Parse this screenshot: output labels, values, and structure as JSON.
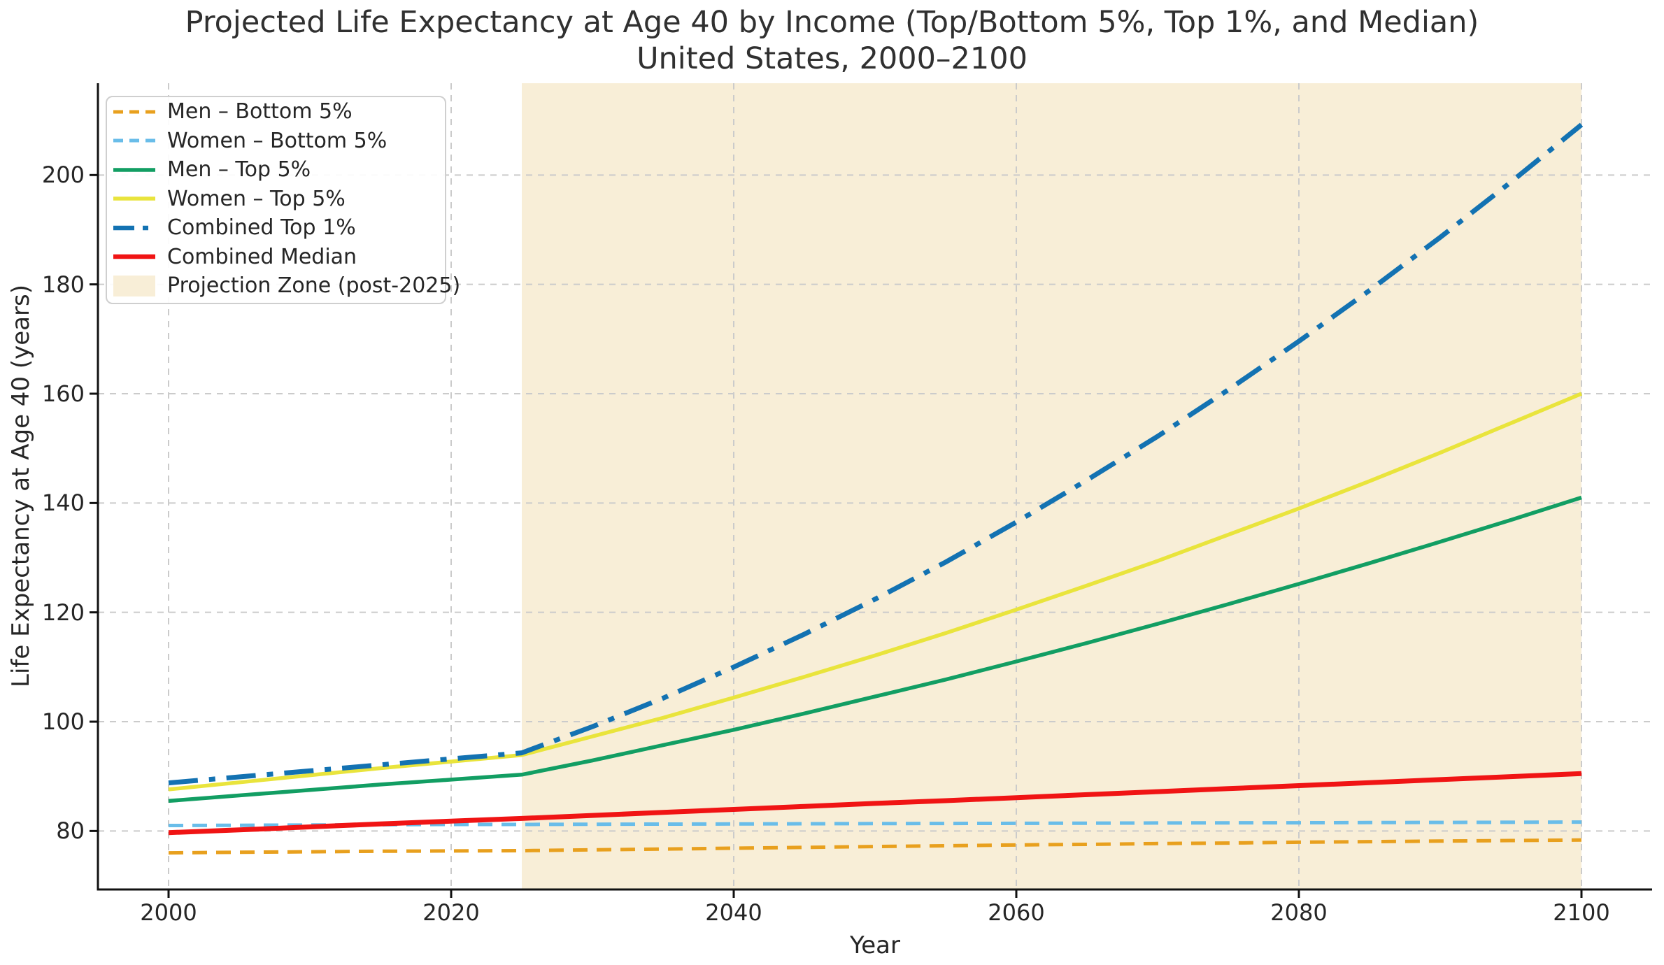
{
  "title": {
    "line1": "Projected Life Expectancy at Age 40 by Income (Top/Bottom 5%, Top 1%, and Median)",
    "line2": "United States, 2000–2100"
  },
  "chart_data": {
    "type": "line",
    "title": "Projected Life Expectancy at Age 40 by Income (Top/Bottom 5%, Top 1%, and Median) — United States, 2000–2100",
    "xlabel": "Year",
    "ylabel": "Life Expectancy at Age 40 (years)",
    "xlim": [
      1995,
      2105
    ],
    "ylim": [
      69.3,
      216.8
    ],
    "xticks": [
      2000,
      2020,
      2040,
      2060,
      2080,
      2100
    ],
    "yticks": [
      80,
      100,
      120,
      140,
      160,
      180,
      200
    ],
    "grid": true,
    "grid_color": "#cbcbcb",
    "legend_position": "upper left",
    "x": [
      2000,
      2005,
      2010,
      2015,
      2020,
      2025,
      2030,
      2035,
      2040,
      2045,
      2050,
      2055,
      2060,
      2065,
      2070,
      2075,
      2080,
      2085,
      2090,
      2095,
      2100
    ],
    "series": [
      {
        "name": "Men – Bottom 5%",
        "color": "#e8a01e",
        "style": "dashed",
        "width": 5,
        "values": [
          76.0,
          76.1,
          76.2,
          76.3,
          76.35,
          76.4,
          76.55,
          76.7,
          76.85,
          77.0,
          77.15,
          77.3,
          77.45,
          77.55,
          77.7,
          77.8,
          77.95,
          78.05,
          78.15,
          78.25,
          78.35
        ]
      },
      {
        "name": "Women – Bottom 5%",
        "color": "#69bde9",
        "style": "dashed",
        "width": 5,
        "values": [
          81.0,
          81.05,
          81.1,
          81.15,
          81.2,
          81.2,
          81.23,
          81.26,
          81.29,
          81.32,
          81.35,
          81.38,
          81.4,
          81.43,
          81.46,
          81.49,
          81.51,
          81.54,
          81.57,
          81.6,
          81.63
        ]
      },
      {
        "name": "Men – Top 5%",
        "color": "#129e63",
        "style": "solid",
        "width": 5.5,
        "values": [
          85.5,
          86.5,
          87.5,
          88.5,
          89.4,
          90.3,
          92.9,
          95.7,
          98.5,
          101.5,
          104.6,
          107.7,
          111.0,
          114.4,
          117.9,
          121.5,
          125.2,
          129.0,
          132.9,
          136.9,
          141.0
        ]
      },
      {
        "name": "Women – Top 5%",
        "color": "#e9e43c",
        "style": "solid",
        "width": 5.5,
        "values": [
          87.6,
          88.9,
          90.2,
          91.5,
          92.7,
          93.9,
          97.3,
          100.7,
          104.4,
          108.2,
          112.1,
          116.2,
          120.5,
          124.9,
          129.4,
          134.2,
          139.0,
          144.0,
          149.2,
          154.6,
          160.0
        ]
      },
      {
        "name": "Combined Top 1%",
        "color": "#1372b2",
        "style": "dashdot",
        "width": 7,
        "values": [
          88.8,
          89.9,
          91.0,
          92.1,
          93.2,
          94.3,
          99.1,
          104.3,
          110.0,
          116.0,
          122.4,
          129.2,
          136.5,
          144.2,
          152.2,
          160.7,
          169.6,
          178.9,
          188.6,
          198.7,
          209.2
        ]
      },
      {
        "name": "Combined Median",
        "color": "#f01414",
        "style": "solid",
        "width": 7,
        "values": [
          79.7,
          80.2,
          80.75,
          81.3,
          81.8,
          82.3,
          82.85,
          83.4,
          83.95,
          84.5,
          85.05,
          85.55,
          86.1,
          86.65,
          87.2,
          87.75,
          88.3,
          88.85,
          89.4,
          89.95,
          90.5
        ]
      }
    ],
    "projection_zone": {
      "label": "Projection Zone (post-2025)",
      "from": 2025,
      "to": 2100,
      "color": "#f8eed7"
    }
  }
}
